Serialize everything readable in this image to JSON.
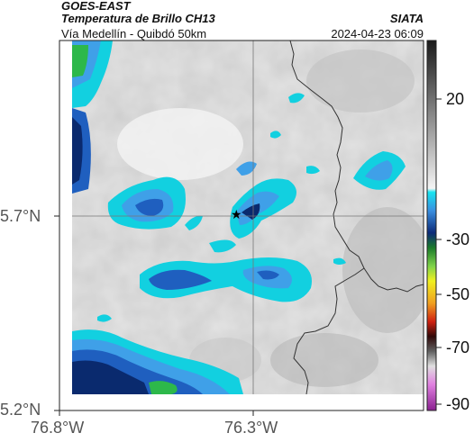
{
  "header": {
    "satellite": "GOES-EAST",
    "product": "Temperatura de Brillo CH13",
    "region": "Vía Medellín - Quibdó 50km",
    "agency": "SIATA",
    "timestamp": "2024-04-23 06:09"
  },
  "map": {
    "lat_labels": [
      "5.7°N",
      "5.2°N"
    ],
    "lon_labels": [
      "76.8°W",
      "76.3°W"
    ],
    "marker_icon": "star-icon",
    "colors": {
      "cloud_deep": "#0a2a6e",
      "cloud_blue": "#1f5fbf",
      "cloud_mid": "#3fa0e8",
      "cloud_cyan": "#12d0e0",
      "cloud_green": "#2db84a",
      "background_gray": "#d9d9d9",
      "border_line": "#333333"
    }
  },
  "colorbar": {
    "labels": [
      "20",
      "-30",
      "-50",
      "-70",
      "-90"
    ]
  }
}
